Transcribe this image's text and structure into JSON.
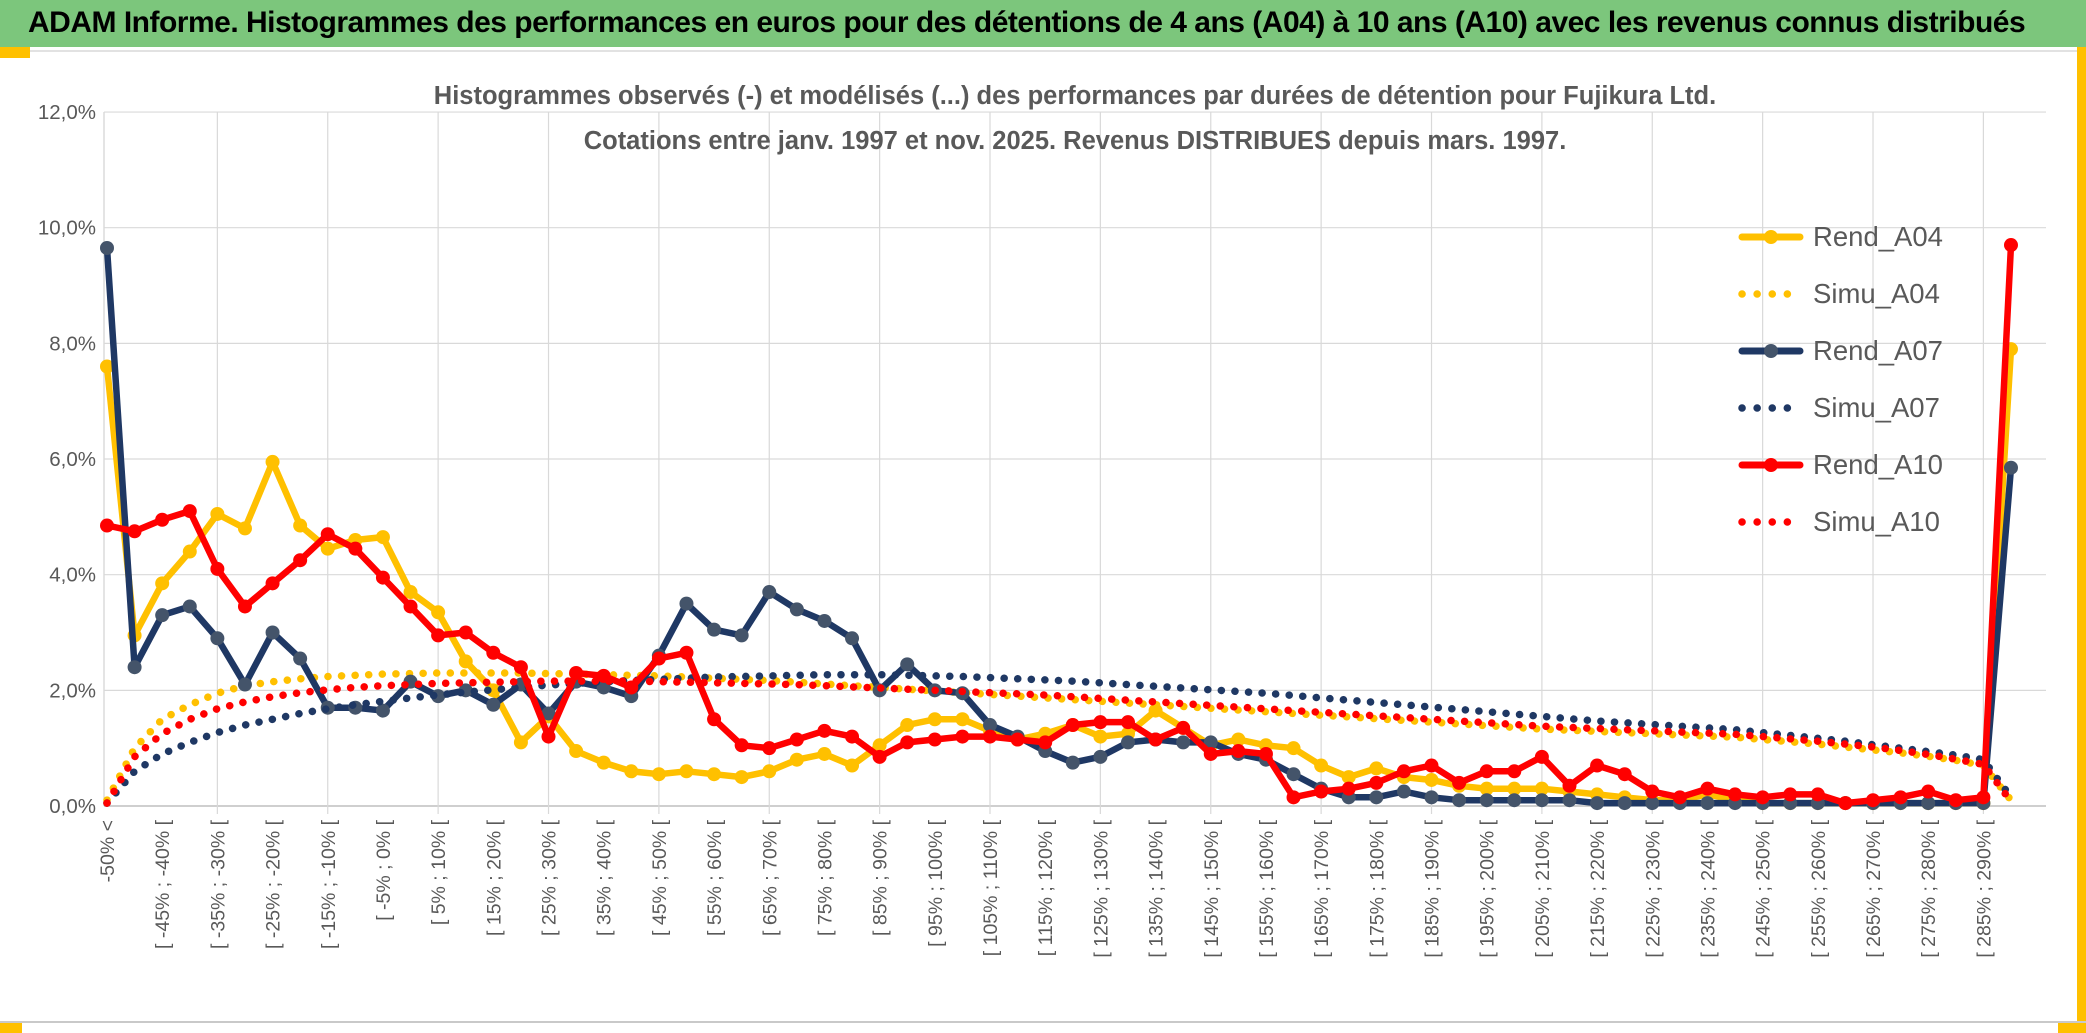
{
  "window": {
    "banner_title": "ADAM Informe. Histogrammes des performances en euros pour des détentions de 4 ans (A04) à 10 ans (A10) avec les revenus connus distribués"
  },
  "colors": {
    "banner_green": "#7CC67C",
    "accent_gold": "#FFC000",
    "gold": "#FFC000",
    "navy": "#1F3864",
    "navy_marker": "#44546A",
    "red": "#FF0000",
    "grid": "#D9D9D9",
    "axis": "#BFBFBF",
    "text_gray": "#595959"
  },
  "chart_data": {
    "type": "line",
    "title_line1": "Histogrammes observés (-) et modélisés (...) des performances par durées de détention pour Fujikura Ltd.",
    "title_line2": "Cotations entre janv. 1997 et nov. 2025. Revenus DISTRIBUES depuis mars. 1997.",
    "ylabel": "",
    "xlabel": "",
    "ylim_percent": [
      0,
      12
    ],
    "y_tick_labels": [
      "0,0%",
      "2,0%",
      "4,0%",
      "6,0%",
      "8,0%",
      "10,0%",
      "12,0%"
    ],
    "grid": "both",
    "legend_position": "right-overlay",
    "n_bins": 70,
    "x_tick_labels": [
      "-50% <",
      "[ -45% ; -40% [",
      "[ -35% ; -30% [",
      "[ -25% ; -20% [",
      "[ -15% ; -10% [",
      "[ -5% ; 0% [",
      "[ 5% ; 10% [",
      "[ 15% ; 20% [",
      "[ 25% ; 30% [",
      "[ 35% ; 40% [",
      "[ 45% ; 50% [",
      "[ 55% ; 60% [",
      "[ 65% ; 70% [",
      "[ 75% ; 80% [",
      "[ 85% ; 90% [",
      "[ 95% ; 100% [",
      "[ 105% ; 110% [",
      "[ 115% ; 120% [",
      "[ 125% ; 130% [",
      "[ 135% ; 140% [",
      "[ 145% ; 150% [",
      "[ 155% ; 160% [",
      "[ 165% ; 170% [",
      "[ 175% ; 180% [",
      "[ 185% ; 190% [",
      "[ 195% ; 200% [",
      "[ 205% ; 210% [",
      "[ 215% ; 220% [",
      "[ 225% ; 230% [",
      "[ 235% ; 240% [",
      "[ 245% ; 250% [",
      "[ 255% ; 260% [",
      "[ 265% ; 270% [",
      "[ 275% ; 280% [",
      "[ 285% ; 290% ["
    ],
    "x_tick_label_bins": [
      1,
      3,
      5,
      7,
      9,
      11,
      13,
      15,
      17,
      19,
      21,
      23,
      25,
      27,
      29,
      31,
      33,
      35,
      37,
      39,
      41,
      43,
      45,
      47,
      49,
      51,
      53,
      55,
      57,
      59,
      61,
      63,
      65,
      67,
      69
    ],
    "series": [
      {
        "name": "Rend_A04",
        "style": "solid",
        "color": "#FFC000",
        "marker_color": "#FFC000",
        "values": [
          7.6,
          2.95,
          3.85,
          4.4,
          5.05,
          4.8,
          5.95,
          4.85,
          4.45,
          4.6,
          4.65,
          3.7,
          3.35,
          2.5,
          2.0,
          1.1,
          1.55,
          0.95,
          0.75,
          0.6,
          0.55,
          0.6,
          0.55,
          0.5,
          0.6,
          0.8,
          0.9,
          0.7,
          1.05,
          1.4,
          1.5,
          1.5,
          1.3,
          1.15,
          1.25,
          1.4,
          1.2,
          1.25,
          1.65,
          1.35,
          1.05,
          1.15,
          1.05,
          1.0,
          0.7,
          0.5,
          0.65,
          0.5,
          0.45,
          0.35,
          0.3,
          0.3,
          0.3,
          0.25,
          0.2,
          0.15,
          0.1,
          0.1,
          0.2,
          0.1,
          0.05,
          0.05,
          0.05,
          0.05,
          0.05,
          0.05,
          0.05,
          0.05,
          0.05,
          7.9
        ]
      },
      {
        "name": "Simu_A04",
        "style": "dotted",
        "color": "#FFC000",
        "marker_color": "#FFC000",
        "values": [
          0.1,
          1.0,
          1.5,
          1.75,
          1.95,
          2.08,
          2.15,
          2.2,
          2.24,
          2.26,
          2.28,
          2.29,
          2.3,
          2.3,
          2.3,
          2.3,
          2.29,
          2.28,
          2.27,
          2.26,
          2.25,
          2.23,
          2.21,
          2.19,
          2.17,
          2.14,
          2.11,
          2.08,
          2.05,
          2.02,
          1.99,
          1.96,
          1.93,
          1.9,
          1.87,
          1.84,
          1.81,
          1.78,
          1.75,
          1.72,
          1.69,
          1.66,
          1.63,
          1.6,
          1.57,
          1.54,
          1.51,
          1.48,
          1.45,
          1.42,
          1.39,
          1.36,
          1.33,
          1.31,
          1.29,
          1.27,
          1.25,
          1.23,
          1.21,
          1.19,
          1.15,
          1.11,
          1.07,
          1.02,
          0.97,
          0.92,
          0.86,
          0.79,
          0.7,
          0.1
        ]
      },
      {
        "name": "Rend_A07",
        "style": "solid",
        "color": "#1F3864",
        "marker_color": "#44546A",
        "values": [
          9.65,
          2.4,
          3.3,
          3.45,
          2.9,
          2.1,
          3.0,
          2.55,
          1.7,
          1.7,
          1.65,
          2.15,
          1.9,
          2.0,
          1.75,
          2.1,
          1.6,
          2.15,
          2.05,
          1.9,
          2.6,
          3.5,
          3.05,
          2.95,
          3.7,
          3.4,
          3.2,
          2.9,
          2.0,
          2.45,
          2.0,
          1.95,
          1.4,
          1.2,
          0.95,
          0.75,
          0.85,
          1.1,
          1.15,
          1.1,
          1.1,
          0.9,
          0.8,
          0.55,
          0.3,
          0.15,
          0.15,
          0.25,
          0.15,
          0.1,
          0.1,
          0.1,
          0.1,
          0.1,
          0.05,
          0.05,
          0.05,
          0.05,
          0.05,
          0.05,
          0.05,
          0.05,
          0.05,
          0.05,
          0.05,
          0.05,
          0.05,
          0.05,
          0.05,
          5.85
        ]
      },
      {
        "name": "Simu_A07",
        "style": "dotted",
        "color": "#1F3864",
        "marker_color": "#1F3864",
        "values": [
          0.05,
          0.6,
          0.9,
          1.1,
          1.27,
          1.4,
          1.5,
          1.6,
          1.68,
          1.75,
          1.81,
          1.87,
          1.92,
          1.97,
          2.01,
          2.05,
          2.09,
          2.12,
          2.15,
          2.17,
          2.19,
          2.21,
          2.23,
          2.24,
          2.25,
          2.26,
          2.27,
          2.27,
          2.27,
          2.26,
          2.25,
          2.24,
          2.22,
          2.2,
          2.18,
          2.16,
          2.13,
          2.1,
          2.07,
          2.04,
          2.01,
          1.98,
          1.95,
          1.91,
          1.87,
          1.83,
          1.79,
          1.75,
          1.71,
          1.67,
          1.63,
          1.59,
          1.55,
          1.51,
          1.47,
          1.44,
          1.41,
          1.38,
          1.35,
          1.32,
          1.27,
          1.22,
          1.17,
          1.12,
          1.06,
          1.0,
          0.94,
          0.88,
          0.8,
          0.15
        ]
      },
      {
        "name": "Rend_A10",
        "style": "solid",
        "color": "#FF0000",
        "marker_color": "#FF0000",
        "values": [
          4.85,
          4.75,
          4.95,
          5.1,
          4.1,
          3.45,
          3.85,
          4.25,
          4.7,
          4.45,
          3.95,
          3.45,
          2.95,
          3.0,
          2.65,
          2.4,
          1.2,
          2.3,
          2.25,
          2.05,
          2.55,
          2.65,
          1.5,
          1.05,
          1.0,
          1.15,
          1.3,
          1.2,
          0.85,
          1.1,
          1.15,
          1.2,
          1.2,
          1.15,
          1.1,
          1.4,
          1.45,
          1.45,
          1.15,
          1.35,
          0.9,
          0.95,
          0.9,
          0.15,
          0.25,
          0.3,
          0.4,
          0.6,
          0.7,
          0.4,
          0.6,
          0.6,
          0.85,
          0.35,
          0.7,
          0.55,
          0.25,
          0.15,
          0.3,
          0.2,
          0.15,
          0.2,
          0.2,
          0.05,
          0.1,
          0.15,
          0.25,
          0.1,
          0.15,
          9.7
        ]
      },
      {
        "name": "Simu_A10",
        "style": "dotted",
        "color": "#FF0000",
        "marker_color": "#FF0000",
        "values": [
          0.05,
          0.85,
          1.25,
          1.5,
          1.68,
          1.8,
          1.89,
          1.96,
          2.01,
          2.05,
          2.08,
          2.1,
          2.12,
          2.13,
          2.14,
          2.15,
          2.16,
          2.16,
          2.16,
          2.16,
          2.15,
          2.14,
          2.13,
          2.12,
          2.11,
          2.1,
          2.08,
          2.06,
          2.04,
          2.02,
          2.0,
          1.98,
          1.96,
          1.94,
          1.92,
          1.89,
          1.86,
          1.83,
          1.8,
          1.77,
          1.74,
          1.71,
          1.68,
          1.65,
          1.62,
          1.59,
          1.56,
          1.53,
          1.5,
          1.47,
          1.44,
          1.41,
          1.38,
          1.36,
          1.34,
          1.32,
          1.3,
          1.28,
          1.26,
          1.24,
          1.2,
          1.16,
          1.12,
          1.07,
          1.02,
          0.96,
          0.89,
          0.81,
          0.72,
          0.08
        ]
      }
    ],
    "legend_entries": [
      "Rend_A04",
      "Simu_A04",
      "Rend_A07",
      "Simu_A07",
      "Rend_A10",
      "Simu_A10"
    ]
  }
}
